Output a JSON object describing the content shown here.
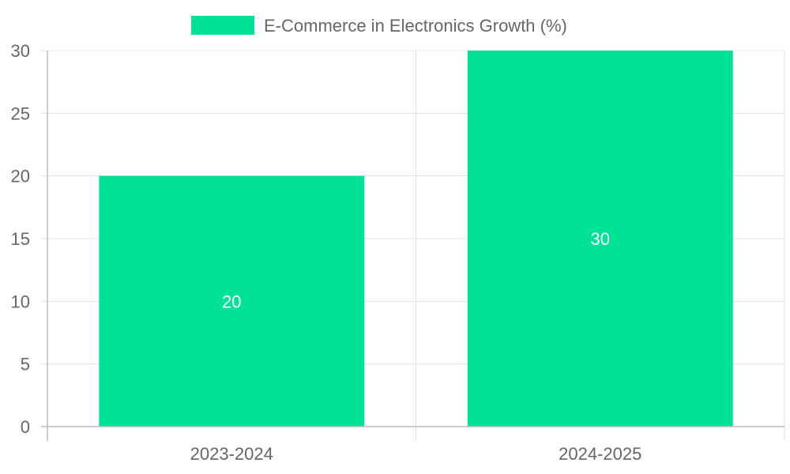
{
  "chart_data": {
    "type": "bar",
    "categories": [
      "2023-2024",
      "2024-2025"
    ],
    "series": [
      {
        "name": "E-Commerce in Electronics Growth (%)",
        "values": [
          20,
          30
        ],
        "color": "#00e396"
      }
    ],
    "ylim": [
      0,
      30
    ],
    "yticks": [
      0,
      5,
      10,
      15,
      20,
      25,
      30
    ],
    "grid": true,
    "legend_position": "top",
    "data_labels": [
      "20",
      "30"
    ]
  }
}
